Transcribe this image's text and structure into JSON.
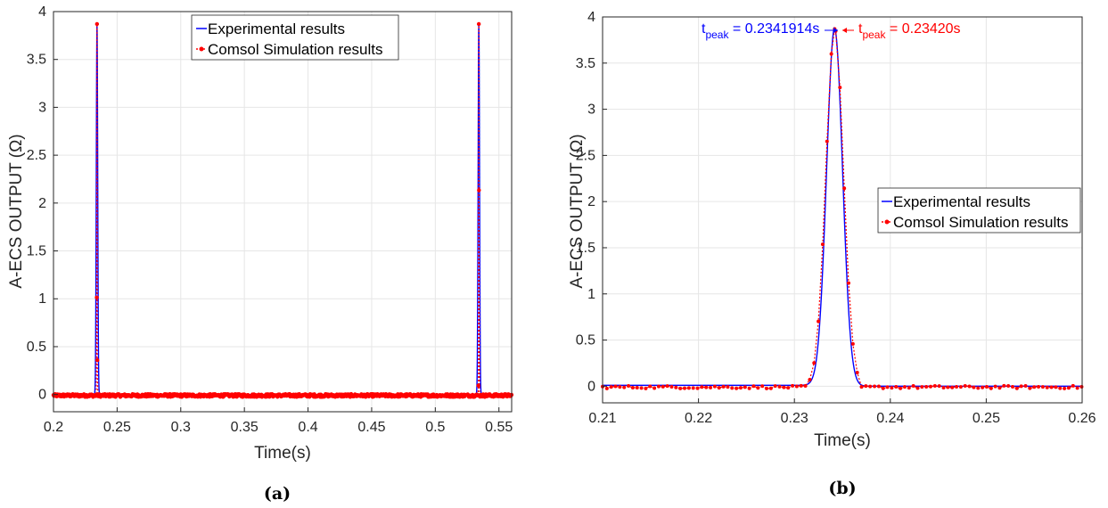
{
  "colors": {
    "experimental": "#0000ff",
    "simulation": "#ff0000",
    "grid": "#e6e6e6",
    "axis": "#262626"
  },
  "legend": {
    "experimental": "Experimental results",
    "simulation": "Comsol Simulation results"
  },
  "captions": {
    "a": "(a)",
    "b": "(b)"
  },
  "annotations": {
    "exp_prefix": "t",
    "exp_sub": "peak",
    "exp_value": " = 0.2341914s",
    "sim_prefix": "t",
    "sim_sub": "peak",
    "sim_value": " = 0.23420s"
  },
  "chart_data": [
    {
      "type": "line",
      "panel": "a",
      "xlabel": "Time(s)",
      "ylabel": "A-ECS OUTPUT (Ω)",
      "xlim": [
        0.2,
        0.56
      ],
      "ylim": [
        -0.18,
        4
      ],
      "xticks": [
        0.2,
        0.25,
        0.3,
        0.35,
        0.4,
        0.45,
        0.5,
        0.55
      ],
      "yticks": [
        0,
        0.5,
        1,
        1.5,
        2,
        2.5,
        3,
        3.5,
        4
      ],
      "grid": true,
      "legend_position": "top-center",
      "peaks": [
        0.2342,
        0.5342
      ],
      "peak_height": 3.87,
      "series": [
        {
          "name": "Experimental results",
          "style": "solid"
        },
        {
          "name": "Comsol Simulation results",
          "style": "dotted-markers"
        }
      ]
    },
    {
      "type": "line",
      "panel": "b",
      "xlabel": "Time(s)",
      "ylabel": "A-ECS OUTPUT (Ω)",
      "xlim": [
        0.21,
        0.26
      ],
      "ylim": [
        -0.18,
        4
      ],
      "xticks": [
        0.21,
        0.22,
        0.23,
        0.24,
        0.25,
        0.26
      ],
      "yticks": [
        0,
        0.5,
        1,
        1.5,
        2,
        2.5,
        3,
        3.5,
        4
      ],
      "grid": true,
      "legend_position": "center-right",
      "peaks": [
        0.2342
      ],
      "peak_height": 3.87,
      "exp_peak": 0.2341914,
      "sim_peak": 0.2342,
      "series": [
        {
          "name": "Experimental results",
          "style": "solid"
        },
        {
          "name": "Comsol Simulation results",
          "style": "dotted-markers"
        }
      ]
    }
  ]
}
